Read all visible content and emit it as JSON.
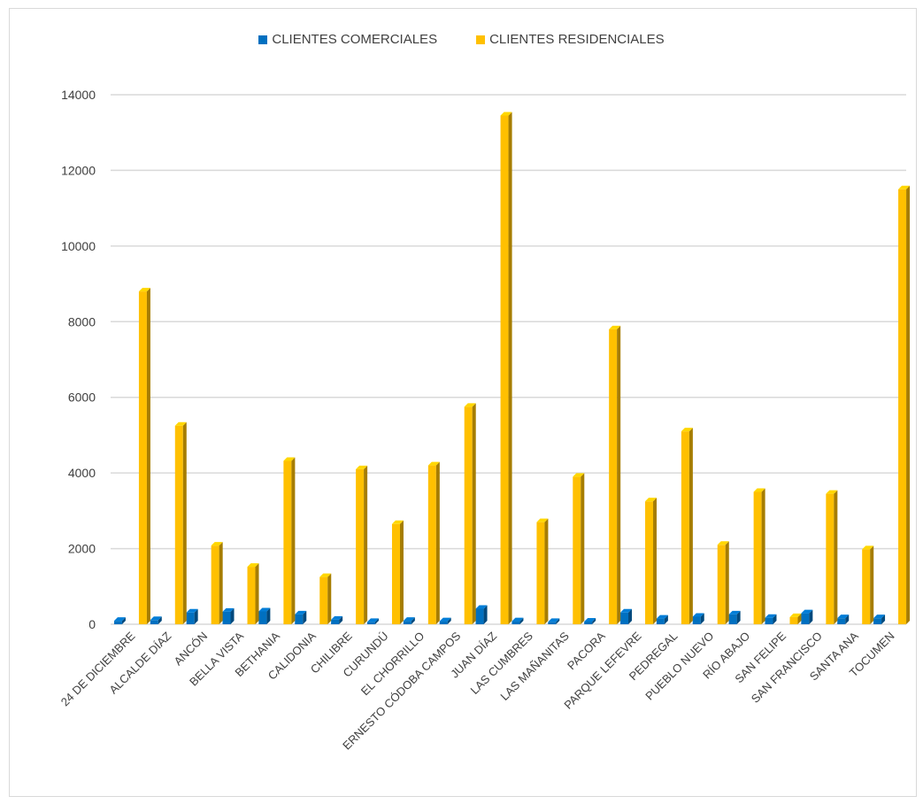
{
  "chart_data": {
    "type": "bar",
    "title": "",
    "xlabel": "",
    "ylabel": "",
    "ylim": [
      0,
      14000
    ],
    "yticks": [
      0,
      2000,
      4000,
      6000,
      8000,
      10000,
      12000,
      14000
    ],
    "grid": true,
    "legend_position": "top",
    "categories": [
      "24 DE DICIEMBRE",
      "ALCALDE DÍAZ",
      "ANCÓN",
      "BELLA VISTA",
      "BETHANIA",
      "CALIDONIA",
      "CHILIBRE",
      "CURUNDÚ",
      "EL CHORRILLO",
      "ERNESTO CÓDOBA CAMPOS",
      "JUAN DÍAZ",
      "LAS CUMBRES",
      "LAS MAÑANITAS",
      "PACORA",
      "PARQUE LEFEVRE",
      "PEDREGAL",
      "PUEBLO NUEVO",
      "RÍO ABAJO",
      "SAN FELIPE",
      "SAN FRANCISCO",
      "SANTA ANA",
      "TOCUMEN"
    ],
    "series": [
      {
        "name": "CLIENTES COMERCIALES",
        "color": "#0070c0",
        "values": [
          90,
          110,
          310,
          330,
          340,
          260,
          120,
          60,
          90,
          80,
          410,
          80,
          60,
          70,
          310,
          150,
          200,
          260,
          170,
          290,
          160,
          160
        ]
      },
      {
        "name": "CLIENTES RESIDENCIALES",
        "color": "#ffc000",
        "values": [
          8800,
          5250,
          2080,
          1520,
          4320,
          1250,
          4100,
          2650,
          4200,
          5750,
          13450,
          2700,
          3900,
          7800,
          3250,
          5100,
          2100,
          3500,
          190,
          3450,
          1980,
          11500
        ]
      }
    ]
  }
}
